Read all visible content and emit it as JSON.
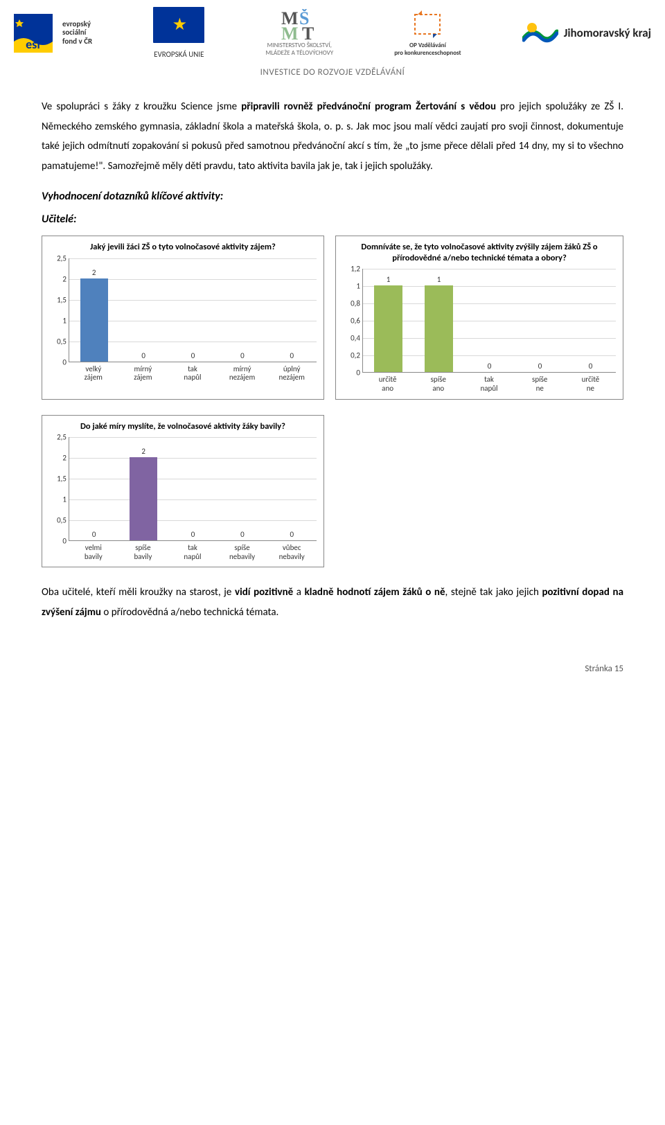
{
  "banner": {
    "esf_lines": [
      "evropský",
      "sociální",
      "fond v ČR"
    ],
    "eu_label": "EVROPSKÁ UNIE",
    "msmt_line1": "MINISTERSTVO ŠKOLSTVÍ,",
    "msmt_line2": "MLÁDEŽE A TĚLOVÝCHOVY",
    "op_line1": "OP Vzdělávání",
    "op_line2": "pro konkurenceschopnost",
    "jmk": "Jihomoravský kraj",
    "subtitle": "INVESTICE DO ROZVOJE VZDĚLÁVÁNÍ"
  },
  "para1": "Ve spolupráci s žáky z kroužku Science jsme připravili rovněž předvánoční program Žertování s vědou pro jejich spolužáky ze ZŠ I. Německého zemského gymnasia, základní škola a mateřská škola, o. p. s. Jak moc jsou malí vědci zaujatí pro svoji činnost, dokumentuje také jejich odmítnutí zopakování si pokusů před samotnou předvánoční akcí s tím, že „to jsme přece dělali před 14 dny, my si to všechno pamatujeme!\". Samozřejmě měly děti pravdu, tato aktivita bavila jak je, tak i jejich spolužáky.",
  "para1_bold_phrases": [
    "připravili rovněž předvánoční program Žertování s vědou"
  ],
  "section_title": "Vyhodnocení dotazníků klíčové aktivity:",
  "sub_title": "Učitelé:",
  "chart1": {
    "title": "Jaký jevili žáci ZŠ o tyto volnočasové aktivity zájem?",
    "type": "bar",
    "categories": [
      "velký zájem",
      "mírný zájem",
      "tak napůl",
      "mírný nezájem",
      "úplný nezájem"
    ],
    "values": [
      2,
      0,
      0,
      0,
      0
    ],
    "bar_color": "#4f81bd",
    "ylim": [
      0,
      2.5
    ],
    "yticks": [
      0,
      0.5,
      1,
      1.5,
      2,
      2.5
    ],
    "ytick_labels": [
      "0",
      "0,5",
      "1",
      "1,5",
      "2",
      "2,5"
    ],
    "grid_color": "#d9d9d9",
    "background_color": "#ffffff"
  },
  "chart2": {
    "title": "Domníváte se, že tyto volnočasové aktivity zvýšily zájem žáků ZŠ o přírodovědné a/nebo technické témata a obory?",
    "type": "bar",
    "categories": [
      "určitě ano",
      "spíše ano",
      "tak napůl",
      "spíše ne",
      "určitě ne"
    ],
    "values": [
      1,
      1,
      0,
      0,
      0
    ],
    "bar_color": "#9bbb59",
    "ylim": [
      0,
      1.2
    ],
    "yticks": [
      0,
      0.2,
      0.4,
      0.6,
      0.8,
      1,
      1.2
    ],
    "ytick_labels": [
      "0",
      "0,2",
      "0,4",
      "0,6",
      "0,8",
      "1",
      "1,2"
    ],
    "grid_color": "#d9d9d9",
    "background_color": "#ffffff"
  },
  "chart3": {
    "title": "Do jaké míry myslíte, že volnočasové aktivity žáky bavily?",
    "type": "bar",
    "categories": [
      "velmi bavily",
      "spíše bavily",
      "tak napůl",
      "spíše nebavily",
      "vůbec nebavily"
    ],
    "values": [
      0,
      2,
      0,
      0,
      0
    ],
    "bar_color": "#8064a2",
    "ylim": [
      0,
      2.5
    ],
    "yticks": [
      0,
      0.5,
      1,
      1.5,
      2,
      2.5
    ],
    "ytick_labels": [
      "0",
      "0,5",
      "1",
      "1,5",
      "2",
      "2,5"
    ],
    "grid_color": "#d9d9d9",
    "background_color": "#ffffff"
  },
  "footer_para": "Oba učitelé, kteří měli kroužky na starost, je vidí pozitivně a kladně hodnotí zájem žáků o ně, stejně tak jako jejich pozitivní dopad na zvýšení zájmu o přírodovědná a/nebo technická témata.",
  "footer_bold_phrases": [
    "vidí pozitivně",
    "kladně hodnotí zájem žáků o ně",
    "pozitivní dopad na zvýšení zájmu"
  ],
  "page_number": "Stránka 15"
}
